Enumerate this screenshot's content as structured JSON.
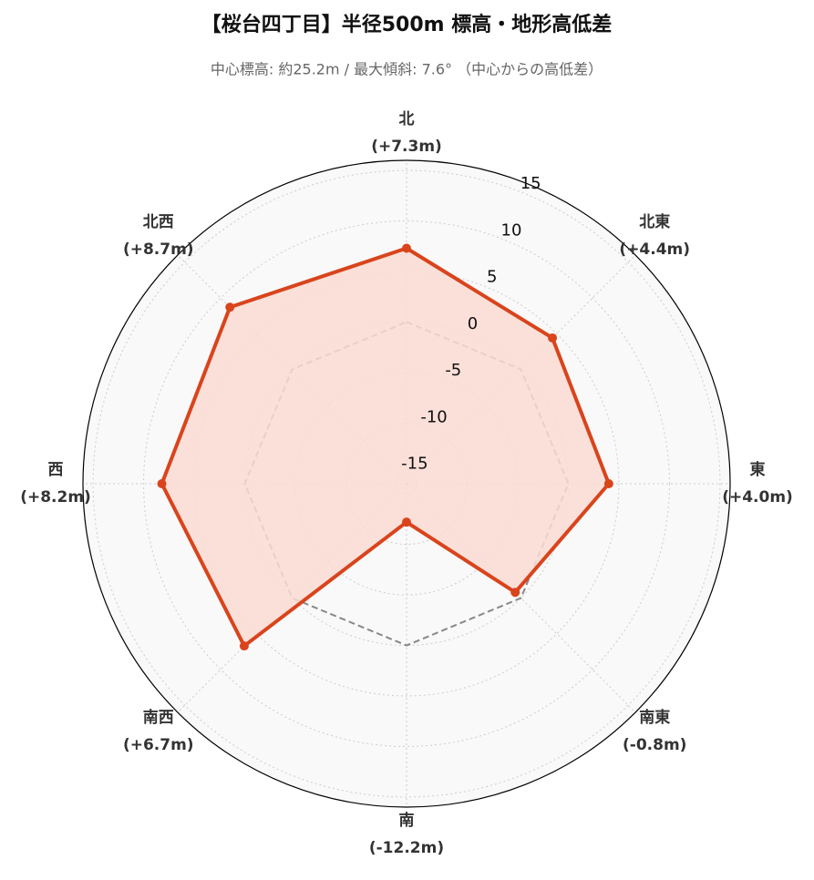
{
  "chart_data": {
    "type": "radar",
    "title": "【桜台四丁目】半径500m 標高・地形高低差",
    "subtitle": "中心標高: 約25.2m / 最大傾斜: 7.6° （中心からの高低差）",
    "categories": [
      "北",
      "北東",
      "東",
      "南東",
      "南",
      "南西",
      "西",
      "北西"
    ],
    "values": [
      7.3,
      4.4,
      4.0,
      -0.8,
      -12.2,
      6.7,
      8.2,
      8.7
    ],
    "value_labels": [
      "(+7.3m)",
      "(+4.4m)",
      "(+4.0m)",
      "(-0.8m)",
      "(-12.2m)",
      "(+6.7m)",
      "(+8.2m)",
      "(+8.7m)"
    ],
    "color": "#d9441c",
    "fill_color": "#fcdcd4",
    "baseline": 0,
    "baseline_color": "#888888",
    "rlim": [
      -16,
      16
    ],
    "rticks": [
      -15,
      -10,
      -5,
      0,
      5,
      10,
      15
    ],
    "grid": true
  }
}
